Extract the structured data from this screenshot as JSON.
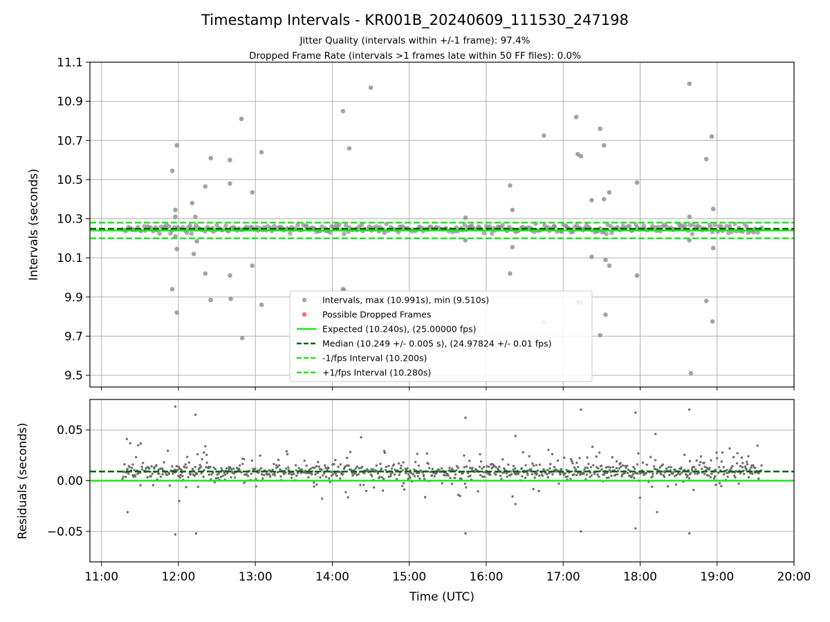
{
  "chart_data": {
    "type": "scatter",
    "title": "Timestamp Intervals - KR001B_20240609_111530_247198",
    "subtitle_lines": [
      "Jitter Quality (intervals within +/-1 frame): 97.4%",
      "Dropped Frame Rate (intervals >1 frames late within 50 FF files): 0.0%"
    ],
    "x_axis": {
      "label": "Time (UTC)",
      "range_hours": [
        10.85,
        20.0
      ],
      "ticks": [
        "11:00",
        "12:00",
        "13:00",
        "14:00",
        "15:00",
        "16:00",
        "17:00",
        "18:00",
        "19:00",
        "20:00"
      ],
      "tick_hours": [
        11,
        12,
        13,
        14,
        15,
        16,
        17,
        18,
        19,
        20
      ]
    },
    "top_panel": {
      "ylabel": "Intervals (seconds)",
      "ylim": [
        9.44,
        11.1
      ],
      "yticks": [
        "9.5",
        "9.7",
        "9.9",
        "10.1",
        "10.3",
        "10.5",
        "10.7",
        "10.9",
        "11.1"
      ],
      "ytick_values": [
        9.5,
        9.7,
        9.9,
        10.1,
        10.3,
        10.5,
        10.7,
        10.9,
        11.1
      ],
      "grid": true,
      "legend_placement": "lower-center",
      "reference_lines": {
        "expected": 10.24,
        "median": 10.249,
        "minus_1_fps": 10.2,
        "plus_1_fps": 10.28
      },
      "outlier_points": [
        [
          11.92,
          10.545
        ],
        [
          11.92,
          9.94
        ],
        [
          11.96,
          10.345
        ],
        [
          11.96,
          10.31
        ],
        [
          11.96,
          10.21
        ],
        [
          11.98,
          10.675
        ],
        [
          11.98,
          10.145
        ],
        [
          11.98,
          9.82
        ],
        [
          12.18,
          10.38
        ],
        [
          12.2,
          10.12
        ],
        [
          12.22,
          10.31
        ],
        [
          12.24,
          10.185
        ],
        [
          12.35,
          10.465
        ],
        [
          12.35,
          10.02
        ],
        [
          12.42,
          10.61
        ],
        [
          12.42,
          9.885
        ],
        [
          12.67,
          10.6
        ],
        [
          12.67,
          10.48
        ],
        [
          12.67,
          10.01
        ],
        [
          12.68,
          9.89
        ],
        [
          12.82,
          10.81
        ],
        [
          12.83,
          9.69
        ],
        [
          12.96,
          10.435
        ],
        [
          12.96,
          10.06
        ],
        [
          13.08,
          10.64
        ],
        [
          13.08,
          9.86
        ],
        [
          14.14,
          10.85
        ],
        [
          14.14,
          9.94
        ],
        [
          14.15,
          9.935
        ],
        [
          14.22,
          10.66
        ],
        [
          14.5,
          10.97
        ],
        [
          15.73,
          10.305
        ],
        [
          15.73,
          10.19
        ],
        [
          16.31,
          10.47
        ],
        [
          16.31,
          10.02
        ],
        [
          16.34,
          10.345
        ],
        [
          16.34,
          10.155
        ],
        [
          16.75,
          10.725
        ],
        [
          16.75,
          9.77
        ],
        [
          17.17,
          10.82
        ],
        [
          17.19,
          10.63
        ],
        [
          17.2,
          9.875
        ],
        [
          17.23,
          10.62
        ],
        [
          17.23,
          9.87
        ],
        [
          17.37,
          10.395
        ],
        [
          17.37,
          10.105
        ],
        [
          17.48,
          10.76
        ],
        [
          17.48,
          9.705
        ],
        [
          17.53,
          10.675
        ],
        [
          17.53,
          10.4
        ],
        [
          17.55,
          10.09
        ],
        [
          17.55,
          9.81
        ],
        [
          17.6,
          10.435
        ],
        [
          17.6,
          10.06
        ],
        [
          17.96,
          10.485
        ],
        [
          17.96,
          10.01
        ],
        [
          18.64,
          10.99
        ],
        [
          18.64,
          10.31
        ],
        [
          18.64,
          10.19
        ],
        [
          18.66,
          9.51
        ],
        [
          18.86,
          10.605
        ],
        [
          18.86,
          9.88
        ],
        [
          18.93,
          10.72
        ],
        [
          18.95,
          10.35
        ],
        [
          18.95,
          10.15
        ],
        [
          18.94,
          9.775
        ]
      ]
    },
    "bottom_panel": {
      "ylabel": "Residuals (seconds)",
      "ylim": [
        -0.08,
        0.08
      ],
      "yticks": [
        "−0.05",
        "0.00",
        "0.05"
      ],
      "ytick_values": [
        -0.05,
        0.0,
        0.05
      ],
      "grid": true,
      "reference_lines": {
        "zero": 0.0,
        "median_residual": 0.009
      },
      "outlier_points": [
        [
          11.33,
          0.041
        ],
        [
          11.34,
          -0.031
        ],
        [
          11.96,
          0.073
        ],
        [
          11.96,
          -0.053
        ],
        [
          12.01,
          -0.02
        ],
        [
          12.22,
          0.065
        ],
        [
          12.23,
          -0.052
        ],
        [
          15.73,
          0.062
        ],
        [
          15.73,
          -0.052
        ],
        [
          16.38,
          0.044
        ],
        [
          16.38,
          -0.023
        ],
        [
          17.23,
          0.07
        ],
        [
          17.23,
          -0.05
        ],
        [
          17.94,
          0.067
        ],
        [
          17.94,
          -0.047
        ],
        [
          18.2,
          0.046
        ],
        [
          18.22,
          -0.031
        ],
        [
          18.64,
          0.07
        ],
        [
          18.64,
          -0.052
        ]
      ]
    },
    "dense_band": {
      "time_range_hours": [
        11.27,
        19.58
      ],
      "top_center": 10.249,
      "top_spread": 0.03,
      "residual_center": 0.009,
      "residual_spread": 0.012
    },
    "legend": [
      {
        "label": "Intervals, max (10.991s), min (9.510s)",
        "kind": "marker",
        "color": "#999999"
      },
      {
        "label": "Possible Dropped Frames",
        "kind": "marker",
        "color": "#ff5555"
      },
      {
        "label": "Expected (10.240s), (25.00000 fps)",
        "kind": "solid",
        "color": "#19e619"
      },
      {
        "label": "Median (10.249 +/- 0.005 s), (24.97824 +/- 0.01 fps)",
        "kind": "dashed",
        "color": "#006400"
      },
      {
        "label": "-1/fps Interval (10.200s)",
        "kind": "dashed",
        "color": "#19e619"
      },
      {
        "label": "+1/fps Interval (10.280s)",
        "kind": "dashed",
        "color": "#19e619"
      }
    ],
    "colors": {
      "points": "#8c8c8c",
      "residual_points": "#6e6e6e",
      "expected": "#19e619",
      "median": "#006400",
      "grid": "#b0b0b0"
    }
  }
}
